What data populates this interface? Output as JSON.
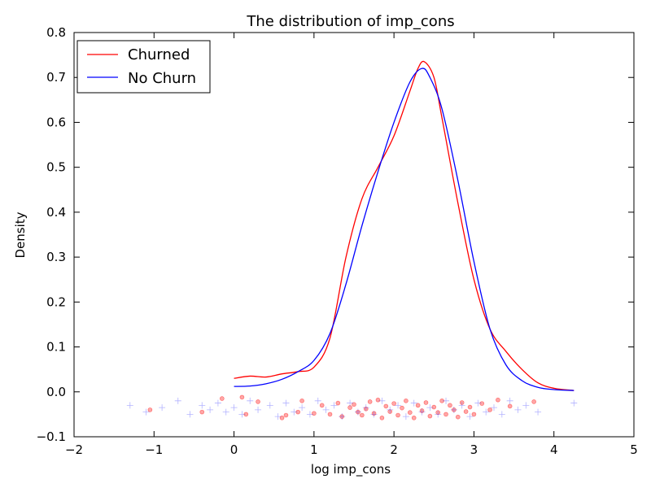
{
  "chart_data": {
    "type": "line",
    "title": "The distribution of imp_cons",
    "xlabel": "log imp_cons",
    "ylabel": "Density",
    "xlim": [
      -2,
      5
    ],
    "ylim": [
      -0.1,
      0.8
    ],
    "xticks": [
      -2,
      -1,
      0,
      1,
      2,
      3,
      4,
      5
    ],
    "xtick_labels": [
      "−2",
      "−1",
      "0",
      "1",
      "2",
      "3",
      "4",
      "5"
    ],
    "yticks": [
      -0.1,
      0.0,
      0.1,
      0.2,
      0.3,
      0.4,
      0.5,
      0.6,
      0.7,
      0.8
    ],
    "ytick_labels": [
      "−0.1",
      "0.0",
      "0.1",
      "0.2",
      "0.3",
      "0.4",
      "0.5",
      "0.6",
      "0.7",
      "0.8"
    ],
    "legend_position": "top-left",
    "grid": false,
    "series": [
      {
        "name": "Churned",
        "color": "#ff0000",
        "x": [
          0.0,
          0.2,
          0.4,
          0.6,
          0.8,
          1.0,
          1.2,
          1.4,
          1.6,
          1.8,
          2.0,
          2.2,
          2.3,
          2.38,
          2.5,
          2.6,
          2.8,
          3.0,
          3.2,
          3.4,
          3.6,
          3.8,
          4.0,
          4.25
        ],
        "y": [
          0.03,
          0.035,
          0.033,
          0.04,
          0.045,
          0.055,
          0.12,
          0.3,
          0.43,
          0.5,
          0.57,
          0.67,
          0.72,
          0.735,
          0.7,
          0.61,
          0.42,
          0.25,
          0.14,
          0.09,
          0.05,
          0.02,
          0.008,
          0.003
        ]
      },
      {
        "name": "No Churn",
        "color": "#0000ff",
        "x": [
          0.0,
          0.2,
          0.4,
          0.6,
          0.8,
          1.0,
          1.2,
          1.4,
          1.6,
          1.8,
          2.0,
          2.2,
          2.35,
          2.45,
          2.6,
          2.8,
          3.0,
          3.2,
          3.4,
          3.6,
          3.8,
          4.0,
          4.25
        ],
        "y": [
          0.012,
          0.013,
          0.018,
          0.028,
          0.045,
          0.07,
          0.13,
          0.24,
          0.37,
          0.49,
          0.6,
          0.69,
          0.72,
          0.7,
          0.63,
          0.47,
          0.29,
          0.14,
          0.06,
          0.025,
          0.01,
          0.005,
          0.003
        ]
      }
    ],
    "rug": [
      {
        "name": "Churned",
        "marker": "circle",
        "color": "#ff0000",
        "x": [
          -1.05,
          -0.4,
          -0.15,
          0.1,
          0.15,
          0.3,
          0.6,
          0.65,
          0.8,
          0.85,
          1.0,
          1.1,
          1.2,
          1.3,
          1.35,
          1.45,
          1.5,
          1.55,
          1.6,
          1.65,
          1.7,
          1.75,
          1.8,
          1.85,
          1.9,
          1.95,
          2.0,
          2.05,
          2.1,
          2.15,
          2.2,
          2.25,
          2.3,
          2.35,
          2.4,
          2.45,
          2.5,
          2.55,
          2.6,
          2.65,
          2.7,
          2.75,
          2.8,
          2.85,
          2.9,
          2.95,
          3.0,
          3.1,
          3.2,
          3.3,
          3.45,
          3.75
        ],
        "y": [
          -0.04,
          -0.045,
          -0.015,
          -0.012,
          -0.05,
          -0.022,
          -0.058,
          -0.052,
          -0.045,
          -0.02,
          -0.048,
          -0.03,
          -0.05,
          -0.025,
          -0.055,
          -0.035,
          -0.028,
          -0.045,
          -0.052,
          -0.038,
          -0.022,
          -0.048,
          -0.018,
          -0.058,
          -0.032,
          -0.044,
          -0.026,
          -0.052,
          -0.036,
          -0.02,
          -0.046,
          -0.058,
          -0.03,
          -0.042,
          -0.024,
          -0.054,
          -0.034,
          -0.046,
          -0.02,
          -0.05,
          -0.03,
          -0.04,
          -0.056,
          -0.024,
          -0.044,
          -0.034,
          -0.05,
          -0.026,
          -0.04,
          -0.018,
          -0.032,
          -0.022
        ]
      },
      {
        "name": "No Churn",
        "marker": "plus",
        "color": "#0000ff",
        "x": [
          -1.3,
          -1.1,
          -0.9,
          -0.7,
          -0.55,
          -0.4,
          -0.3,
          -0.2,
          -0.1,
          0.0,
          0.1,
          0.2,
          0.3,
          0.45,
          0.55,
          0.65,
          0.75,
          0.85,
          0.95,
          1.05,
          1.15,
          1.25,
          1.35,
          1.45,
          1.55,
          1.65,
          1.75,
          1.85,
          1.95,
          2.05,
          2.15,
          2.25,
          2.35,
          2.45,
          2.55,
          2.65,
          2.75,
          2.85,
          2.95,
          3.05,
          3.15,
          3.25,
          3.35,
          3.45,
          3.55,
          3.65,
          3.8,
          4.25
        ],
        "y": [
          -0.03,
          -0.045,
          -0.035,
          -0.02,
          -0.05,
          -0.03,
          -0.04,
          -0.025,
          -0.045,
          -0.035,
          -0.05,
          -0.02,
          -0.04,
          -0.03,
          -0.055,
          -0.025,
          -0.045,
          -0.035,
          -0.05,
          -0.02,
          -0.04,
          -0.03,
          -0.055,
          -0.025,
          -0.045,
          -0.035,
          -0.05,
          -0.02,
          -0.04,
          -0.03,
          -0.055,
          -0.025,
          -0.045,
          -0.035,
          -0.05,
          -0.02,
          -0.04,
          -0.03,
          -0.055,
          -0.025,
          -0.045,
          -0.035,
          -0.05,
          -0.02,
          -0.04,
          -0.03,
          -0.045,
          -0.025
        ]
      }
    ]
  }
}
